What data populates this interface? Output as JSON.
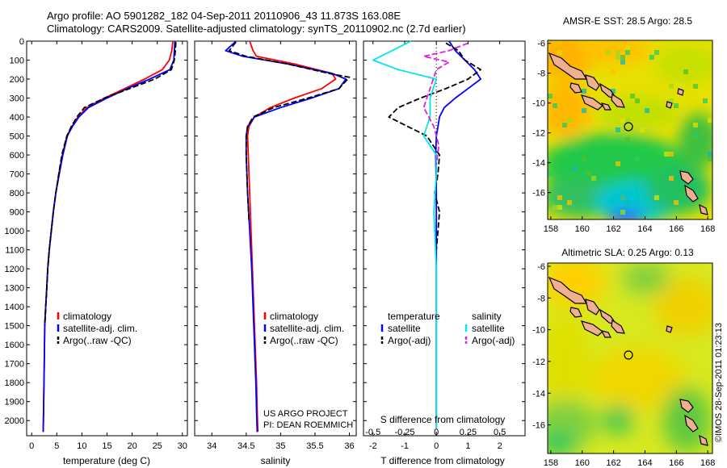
{
  "header": {
    "line1": "Argo profile: AO 5901282_182 04-Sep-2011 20110906_43 11.873S 163.08E",
    "line2": "Climatology: CARS2009. Satellite-adjusted climatology: synTS_20110902.nc (2.7d earlier)"
  },
  "credit": "©IMOS 28-Sep-2011 01:23:13",
  "colors": {
    "climatology": "#ff0000",
    "satellite": "#0000ff",
    "argo": "#000000",
    "salinity_satellite": "#00e5ee",
    "salinity_argo": "#e020e0",
    "coast": "#000000",
    "land": "#f0b090"
  },
  "chart_data": [
    {
      "type": "line",
      "name": "temperature-profile",
      "xlabel": "temperature (deg C)",
      "ylabel": "",
      "xlim": [
        -1,
        31
      ],
      "ylim": [
        2080,
        0
      ],
      "xticks": [
        0,
        5,
        10,
        15,
        20,
        25,
        30
      ],
      "yticks": [
        0,
        100,
        200,
        300,
        400,
        500,
        600,
        700,
        800,
        900,
        1000,
        1100,
        1200,
        1300,
        1400,
        1500,
        1600,
        1700,
        1800,
        1900,
        2000
      ],
      "legend": {
        "position": "lower-left",
        "entries": [
          "climatology",
          "satellite-adj. clim.",
          "Argo(..raw -QC)"
        ]
      },
      "series": [
        {
          "name": "climatology",
          "color": "#ff0000",
          "x": [
            28.1,
            27.9,
            27.4,
            26.0,
            22.5,
            18.5,
            14.5,
            11.0,
            9.2,
            8.0,
            7.0,
            6.1,
            5.4,
            4.8,
            4.3,
            3.9,
            3.5,
            3.2,
            3.0,
            2.8,
            2.6,
            2.5,
            2.4,
            2.3
          ],
          "y": [
            0,
            50,
            100,
            150,
            200,
            250,
            300,
            350,
            400,
            450,
            500,
            600,
            700,
            800,
            900,
            1000,
            1100,
            1200,
            1300,
            1400,
            1500,
            1700,
            1900,
            2060
          ]
        },
        {
          "name": "satellite-adj. clim.",
          "color": "#0000ff",
          "x": [
            28.5,
            28.4,
            28.3,
            27.5,
            23.5,
            19.0,
            15.0,
            11.3,
            9.4,
            8.1,
            7.1,
            6.2,
            5.5,
            4.8,
            4.3,
            3.9,
            3.5,
            3.2,
            3.0,
            2.8,
            2.6,
            2.5,
            2.4,
            2.3
          ],
          "y": [
            0,
            50,
            100,
            150,
            200,
            250,
            300,
            350,
            400,
            450,
            500,
            600,
            700,
            800,
            900,
            1000,
            1100,
            1200,
            1300,
            1400,
            1500,
            1700,
            1900,
            2060
          ]
        },
        {
          "name": "Argo(..raw -QC)",
          "color": "#000000",
          "x": [
            28.7,
            28.6,
            28.4,
            27.8,
            24.5,
            19.5,
            14.5,
            10.5,
            9.0,
            7.9,
            7.0,
            6.0,
            5.4,
            4.8,
            4.3,
            3.9,
            3.5,
            3.2,
            3.0,
            2.8,
            2.6
          ],
          "y": [
            5,
            50,
            100,
            150,
            200,
            250,
            300,
            350,
            400,
            450,
            500,
            600,
            700,
            800,
            900,
            1000,
            1100,
            1200,
            1300,
            1400,
            1500
          ]
        }
      ]
    },
    {
      "type": "line",
      "name": "salinity-profile",
      "xlabel": "salinity",
      "ylabel": "",
      "xlim": [
        33.75,
        36.1
      ],
      "ylim": [
        2080,
        0
      ],
      "xticks": [
        34,
        34.5,
        35,
        35.5,
        36
      ],
      "legend": {
        "position": "lower-left",
        "entries": [
          "climatology",
          "satellite-adj. clim.",
          "Argo(..raw -QC)"
        ]
      },
      "annotation": [
        "US ARGO PROJECT",
        "PI: DEAN ROEMMICH"
      ],
      "series": [
        {
          "name": "climatology",
          "color": "#ff0000",
          "x": [
            34.55,
            34.6,
            34.65,
            35.2,
            35.75,
            35.8,
            35.6,
            35.2,
            34.85,
            34.62,
            34.54,
            34.52,
            34.53,
            34.55,
            34.57,
            34.59,
            34.61,
            34.63,
            34.65,
            34.66,
            34.67
          ],
          "y": [
            0,
            50,
            80,
            120,
            170,
            200,
            250,
            300,
            350,
            400,
            450,
            500,
            600,
            800,
            1000,
            1200,
            1400,
            1600,
            1800,
            1950,
            2060
          ]
        },
        {
          "name": "satellite-adj. clim.",
          "color": "#0000ff",
          "x": [
            34.35,
            34.2,
            34.45,
            35.1,
            35.75,
            35.95,
            35.85,
            35.45,
            35.0,
            34.62,
            34.52,
            34.5,
            34.5,
            34.52,
            34.55,
            34.58,
            34.6,
            34.62,
            34.64,
            34.65,
            34.66
          ],
          "y": [
            0,
            50,
            80,
            120,
            170,
            200,
            250,
            300,
            350,
            400,
            450,
            500,
            600,
            800,
            1000,
            1200,
            1400,
            1600,
            1800,
            1950,
            2060
          ]
        },
        {
          "name": "Argo(..raw -QC)",
          "color": "#000000",
          "x": [
            34.35,
            34.25,
            34.5,
            35.1,
            35.7,
            36.0,
            35.85,
            35.4,
            34.9,
            34.6,
            34.52,
            34.5,
            34.5,
            34.52,
            34.54
          ],
          "y": [
            5,
            50,
            80,
            120,
            170,
            190,
            250,
            300,
            350,
            400,
            450,
            500,
            600,
            800,
            950
          ]
        }
      ]
    },
    {
      "type": "line",
      "name": "difference-profile",
      "xlabel": "T difference from climatology",
      "x2label": "S difference from climatology",
      "xlim": [
        -2.3,
        2.8
      ],
      "x2lim": [
        -0.575,
        0.7
      ],
      "ylim": [
        2080,
        0
      ],
      "xticks": [
        -2,
        -1,
        0,
        1,
        2
      ],
      "x2ticks": [
        -0.5,
        -0.25,
        0,
        0.25,
        0.5
      ],
      "x2ticklabels": [
        "-0.5",
        "-0.25",
        "0",
        "0.25",
        "0.5"
      ],
      "legend": {
        "position": "lower-center",
        "groups": [
          {
            "title": "temperature",
            "entries": [
              "satellite",
              "Argo(-adj)"
            ]
          },
          {
            "title": "salinity",
            "entries": [
              "satellite",
              "Argo(-adj)"
            ]
          }
        ]
      },
      "series": [
        {
          "name": "temperature satellite",
          "color": "#0000ff",
          "x": [
            0.4,
            0.6,
            0.9,
            1.2,
            1.4,
            1.0,
            0.6,
            0.25,
            0.1,
            0.05,
            0.0,
            -0.02,
            0.0,
            0.0,
            0.0
          ],
          "y": [
            0,
            50,
            100,
            150,
            200,
            250,
            300,
            350,
            400,
            450,
            500,
            600,
            800,
            1200,
            2040
          ]
        },
        {
          "name": "temperature Argo(-adj)",
          "color": "#000000",
          "x": [
            0.3,
            0.7,
            0.9,
            1.4,
            1.0,
            0.3,
            -0.5,
            -1.2,
            -1.5,
            -0.9,
            -0.3,
            0.1,
            0.05,
            -0.05,
            0.1,
            0.05,
            0.0
          ],
          "y": [
            10,
            50,
            100,
            150,
            200,
            250,
            300,
            350,
            400,
            450,
            500,
            600,
            700,
            800,
            900,
            1000,
            1100
          ]
        },
        {
          "name": "salinity satellite",
          "color": "#00e5ee",
          "x": [
            -0.2,
            -0.35,
            -0.5,
            -0.3,
            0.0,
            -0.05,
            -0.05,
            -0.1,
            0.0,
            0.0,
            -0.02,
            0.0,
            0.0
          ],
          "y": [
            0,
            50,
            100,
            150,
            200,
            300,
            400,
            500,
            600,
            700,
            900,
            1200,
            2040
          ]
        },
        {
          "name": "salinity Argo(-adj)",
          "color": "#e020e0",
          "x": [
            0.25,
            0.1,
            -0.1,
            0.1,
            0.0,
            -0.05,
            -0.1,
            -0.02,
            0.02,
            0.0
          ],
          "y": [
            10,
            50,
            80,
            110,
            150,
            250,
            350,
            450,
            550,
            650
          ]
        }
      ]
    },
    {
      "type": "heatmap",
      "name": "sst-map",
      "title": "AMSR-E SST: 28.5 Argo: 28.5",
      "xlim": [
        157.8,
        168.3
      ],
      "ylim": [
        -17.8,
        -5.8
      ],
      "xticks": [
        158,
        160,
        162,
        164,
        166,
        168
      ],
      "yticks": [
        -6,
        -8,
        -10,
        -12,
        -14,
        -16
      ],
      "marker": {
        "lon": 163.08,
        "lat": -11.873
      }
    },
    {
      "type": "heatmap",
      "name": "sla-map",
      "title": "Altimetric SLA: 0.25 Argo: 0.13",
      "xlim": [
        157.8,
        168.3
      ],
      "ylim": [
        -17.8,
        -5.8
      ],
      "xticks": [
        158,
        160,
        162,
        164,
        166,
        168
      ],
      "yticks": [
        -6,
        -8,
        -10,
        -12,
        -14,
        -16
      ],
      "marker": {
        "lon": 163.08,
        "lat": -11.873
      }
    }
  ]
}
